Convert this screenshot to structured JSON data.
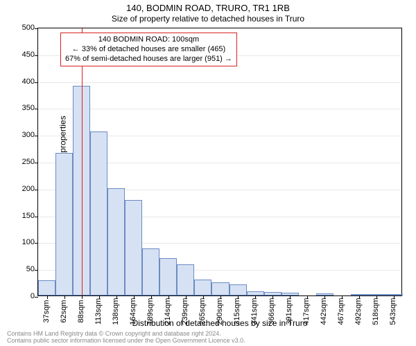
{
  "title": {
    "main": "140, BODMIN ROAD, TRURO, TR1 1RB",
    "sub": "Size of property relative to detached houses in Truro"
  },
  "chart": {
    "type": "histogram",
    "ylabel": "Number of detached properties",
    "xlabel": "Distribution of detached houses by size in Truro",
    "ylim": [
      0,
      500
    ],
    "ytick_step": 50,
    "yticks": [
      0,
      50,
      100,
      150,
      200,
      250,
      300,
      350,
      400,
      450,
      500
    ],
    "xticks": [
      "37sqm",
      "62sqm",
      "88sqm",
      "113sqm",
      "138sqm",
      "164sqm",
      "189sqm",
      "214sqm",
      "239sqm",
      "265sqm",
      "290sqm",
      "315sqm",
      "341sqm",
      "366sqm",
      "391sqm",
      "417sqm",
      "442sqm",
      "467sqm",
      "492sqm",
      "518sqm",
      "543sqm"
    ],
    "values": [
      28,
      265,
      390,
      305,
      200,
      178,
      88,
      70,
      58,
      30,
      25,
      20,
      8,
      6,
      5,
      0,
      4,
      0,
      2,
      2,
      1
    ],
    "bar_fill": "#d6e1f3",
    "bar_stroke": "#6a8bc4",
    "background_color": "#ffffff",
    "grid_color": "#e8e8e8",
    "axis_color": "#000000",
    "marker": {
      "position_index": 2.5,
      "color": "#d62020"
    },
    "annotation": {
      "line1": "140 BODMIN ROAD: 100sqm",
      "line2": "← 33% of detached houses are smaller (465)",
      "line3": "67% of semi-detached houses are larger (951) →",
      "border_color": "#d62020",
      "bg_color": "#ffffff",
      "fontsize": 11
    }
  },
  "footer": {
    "line1": "Contains HM Land Registry data © Crown copyright and database right 2024.",
    "line2": "Contains public sector information licensed under the Open Government Licence v3.0."
  }
}
